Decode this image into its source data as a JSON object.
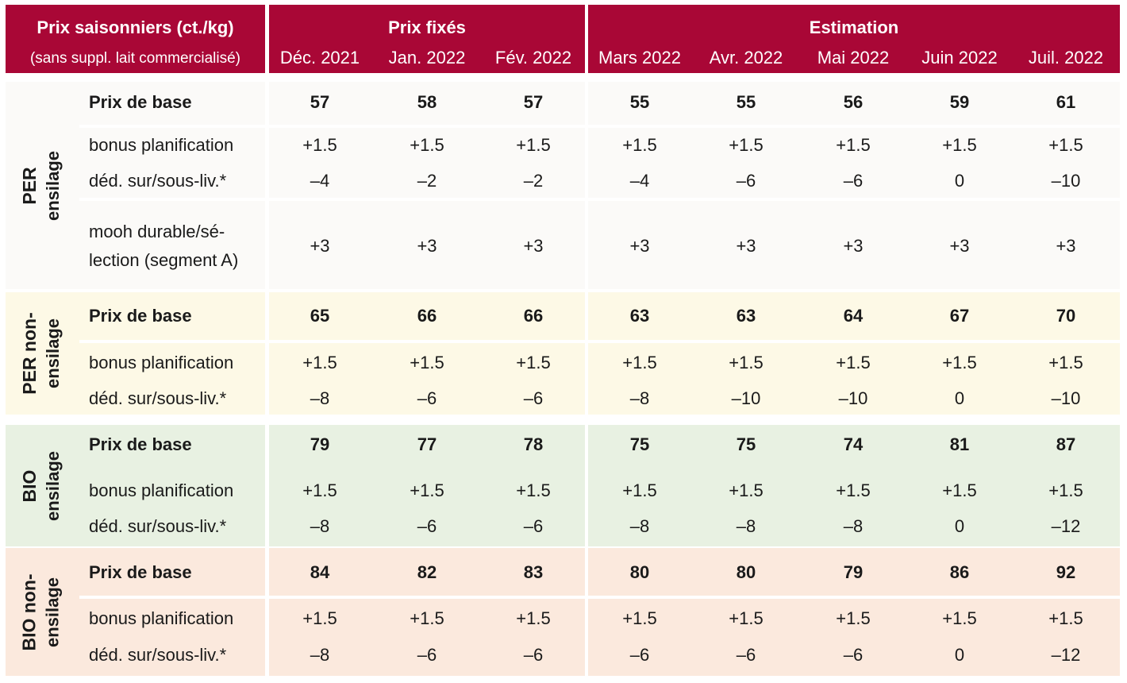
{
  "header": {
    "title": "Prix saisonniers (ct./kg)",
    "subtitle": "(sans suppl. lait commercialisé)",
    "fixed_label": "Prix fixés",
    "estimate_label": "Estimation",
    "months": [
      "Déc. 2021",
      "Jan. 2022",
      "Fév. 2022",
      "Mars 2022",
      "Avr. 2022",
      "Mai 2022",
      "Juin 2022",
      "Juil. 2022"
    ]
  },
  "colors": {
    "header_bg": "#a90736",
    "per_ensilage_bg": "#fbfaf8",
    "per_non_ensilage_bg": "#fdf9e6",
    "bio_ensilage_bg": "#e8f1e2",
    "bio_non_ensilage_bg": "#fbe9dd"
  },
  "groups": [
    {
      "line1": "PER",
      "line2": "ensilage",
      "rows": [
        {
          "label": "Prix de base",
          "values": [
            "57",
            "58",
            "57",
            "55",
            "55",
            "56",
            "59",
            "61"
          ]
        },
        {
          "label": "bonus planification",
          "values": [
            "+1.5",
            "+1.5",
            "+1.5",
            "+1.5",
            "+1.5",
            "+1.5",
            "+1.5",
            "+1.5"
          ]
        },
        {
          "label": "déd. sur/sous-liv.*",
          "values": [
            "–4",
            "–2",
            "–2",
            "–4",
            "–6",
            "–6",
            "0",
            "–10"
          ]
        },
        {
          "label": "mooh durable/sé-lection (segment A)",
          "values": [
            "+3",
            "+3",
            "+3",
            "+3",
            "+3",
            "+3",
            "+3",
            "+3"
          ]
        }
      ]
    },
    {
      "line1": "PER non-",
      "line2": "ensilage",
      "rows": [
        {
          "label": "Prix de base",
          "values": [
            "65",
            "66",
            "66",
            "63",
            "63",
            "64",
            "67",
            "70"
          ]
        },
        {
          "label": "bonus planification",
          "values": [
            "+1.5",
            "+1.5",
            "+1.5",
            "+1.5",
            "+1.5",
            "+1.5",
            "+1.5",
            "+1.5"
          ]
        },
        {
          "label": "déd. sur/sous-liv.*",
          "values": [
            "–8",
            "–6",
            "–6",
            "–8",
            "–10",
            "–10",
            "0",
            "–10"
          ]
        }
      ]
    },
    {
      "line1": "BIO",
      "line2": "ensilage",
      "rows": [
        {
          "label": "Prix de base",
          "values": [
            "79",
            "77",
            "78",
            "75",
            "75",
            "74",
            "81",
            "87"
          ]
        },
        {
          "label": "bonus planification",
          "values": [
            "+1.5",
            "+1.5",
            "+1.5",
            "+1.5",
            "+1.5",
            "+1.5",
            "+1.5",
            "+1.5"
          ]
        },
        {
          "label": "déd. sur/sous-liv.*",
          "values": [
            "–8",
            "–6",
            "–6",
            "–8",
            "–8",
            "–8",
            "0",
            "–12"
          ]
        }
      ]
    },
    {
      "line1": "BIO non-",
      "line2": "ensilage",
      "rows": [
        {
          "label": "Prix de base",
          "values": [
            "84",
            "82",
            "83",
            "80",
            "80",
            "79",
            "86",
            "92"
          ]
        },
        {
          "label": "bonus planification",
          "values": [
            "+1.5",
            "+1.5",
            "+1.5",
            "+1.5",
            "+1.5",
            "+1.5",
            "+1.5",
            "+1.5"
          ]
        },
        {
          "label": "déd. sur/sous-liv.*",
          "values": [
            "–8",
            "–6",
            "–6",
            "–6",
            "–6",
            "–6",
            "0",
            "–12"
          ]
        }
      ]
    }
  ]
}
